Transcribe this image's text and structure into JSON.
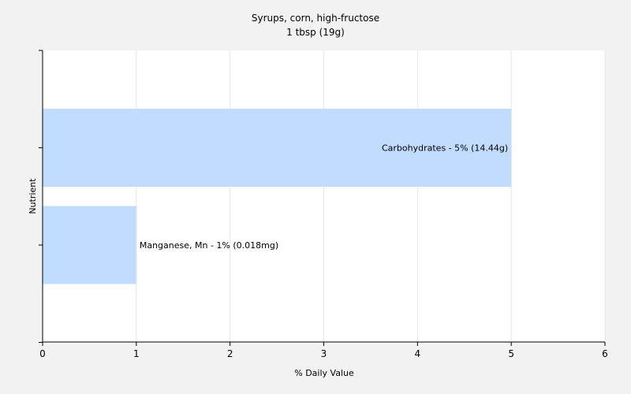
{
  "chart_data": {
    "type": "bar",
    "orientation": "horizontal",
    "title": "Syrups, corn, high-fructose",
    "subtitle": "1 tbsp (19g)",
    "xlabel": "% Daily Value",
    "ylabel": "Nutrient",
    "xlim": [
      0,
      6
    ],
    "xticks": [
      "0",
      "1",
      "2",
      "3",
      "4",
      "5",
      "6"
    ],
    "grid": true,
    "categories": [
      "Carbohydrates",
      "Manganese, Mn"
    ],
    "values": [
      5,
      1
    ],
    "data_labels": [
      "Carbohydrates - 5% (14.44g)",
      "Manganese, Mn - 1% (0.018mg)"
    ],
    "bar_color": "#c2dcff",
    "background": "#f2f2f2",
    "plot_background": "#ffffff"
  }
}
